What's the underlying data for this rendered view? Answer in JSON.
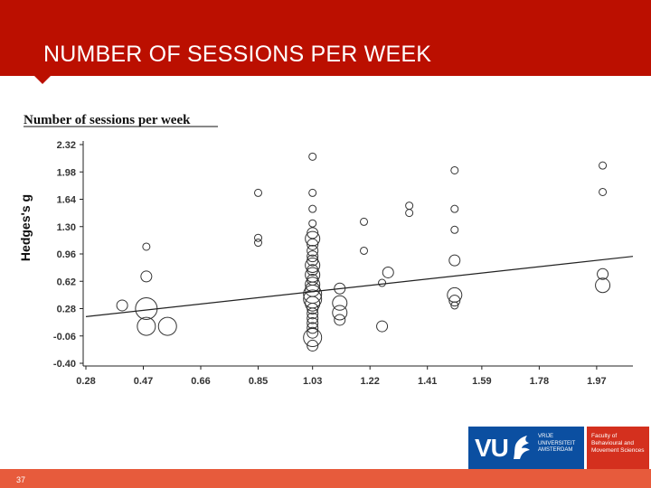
{
  "slide": {
    "title": "NUMBER OF SESSIONS PER WEEK",
    "slide_number": "37",
    "header_color": "#bb0f00",
    "footer_color": "#e75b3c"
  },
  "logo": {
    "mark": "VU",
    "university_lines": [
      "VRIJE",
      "UNIVERSITEIT",
      "AMSTERDAM"
    ],
    "faculty_lines": [
      "Faculty of",
      "Behavioural and",
      "Movement Sciences"
    ],
    "blue": "#0b4fa1",
    "red": "#d4301e",
    "icon": "griffin-icon"
  },
  "chart_data": {
    "type": "scatter",
    "title": "Number of sessions per week",
    "xlabel": "",
    "ylabel": "Hedges's g",
    "xlim": [
      0.28,
      2.09
    ],
    "ylim": [
      -0.4,
      2.32
    ],
    "x_ticks": [
      "0.28",
      "0.47",
      "0.66",
      "0.85",
      "1.03",
      "1.22",
      "1.41",
      "1.59",
      "1.78",
      "1.97"
    ],
    "y_ticks": [
      "2.32",
      "1.98",
      "1.64",
      "1.30",
      "0.96",
      "0.62",
      "0.28",
      "-0.06",
      "-0.40"
    ],
    "grid": false,
    "legend": "none",
    "marker": "open circle sized by weight",
    "regression_line": {
      "x": [
        0.28,
        2.09
      ],
      "y": [
        0.18,
        0.93
      ]
    },
    "points": [
      {
        "x": 1.03,
        "y": 2.17,
        "s": 1
      },
      {
        "x": 1.03,
        "y": 1.72,
        "s": 1
      },
      {
        "x": 1.03,
        "y": 1.52,
        "s": 1
      },
      {
        "x": 1.03,
        "y": 1.34,
        "s": 1
      },
      {
        "x": 1.03,
        "y": 1.22,
        "s": 2
      },
      {
        "x": 1.03,
        "y": 1.15,
        "s": 3
      },
      {
        "x": 1.03,
        "y": 1.08,
        "s": 2
      },
      {
        "x": 1.03,
        "y": 1.0,
        "s": 2
      },
      {
        "x": 1.03,
        "y": 0.93,
        "s": 2
      },
      {
        "x": 1.03,
        "y": 0.88,
        "s": 2
      },
      {
        "x": 1.03,
        "y": 0.82,
        "s": 3
      },
      {
        "x": 1.03,
        "y": 0.76,
        "s": 2
      },
      {
        "x": 1.03,
        "y": 0.7,
        "s": 3
      },
      {
        "x": 1.03,
        "y": 0.64,
        "s": 2
      },
      {
        "x": 1.03,
        "y": 0.58,
        "s": 3
      },
      {
        "x": 1.03,
        "y": 0.52,
        "s": 3
      },
      {
        "x": 1.03,
        "y": 0.46,
        "s": 4
      },
      {
        "x": 1.03,
        "y": 0.4,
        "s": 4
      },
      {
        "x": 1.03,
        "y": 0.34,
        "s": 3
      },
      {
        "x": 1.03,
        "y": 0.28,
        "s": 2
      },
      {
        "x": 1.03,
        "y": 0.22,
        "s": 2
      },
      {
        "x": 1.03,
        "y": 0.16,
        "s": 2
      },
      {
        "x": 1.03,
        "y": 0.1,
        "s": 2
      },
      {
        "x": 1.03,
        "y": 0.04,
        "s": 2
      },
      {
        "x": 1.03,
        "y": -0.02,
        "s": 2
      },
      {
        "x": 1.03,
        "y": -0.08,
        "s": 4
      },
      {
        "x": 1.03,
        "y": -0.18,
        "s": 2
      },
      {
        "x": 0.48,
        "y": 1.05,
        "s": 1
      },
      {
        "x": 0.48,
        "y": 0.68,
        "s": 2
      },
      {
        "x": 0.4,
        "y": 0.32,
        "s": 2
      },
      {
        "x": 0.48,
        "y": 0.28,
        "s": 5
      },
      {
        "x": 0.48,
        "y": 0.06,
        "s": 4
      },
      {
        "x": 0.55,
        "y": 0.06,
        "s": 4
      },
      {
        "x": 0.85,
        "y": 1.72,
        "s": 1
      },
      {
        "x": 0.85,
        "y": 1.16,
        "s": 1
      },
      {
        "x": 0.85,
        "y": 1.1,
        "s": 1
      },
      {
        "x": 1.12,
        "y": 0.53,
        "s": 2
      },
      {
        "x": 1.12,
        "y": 0.35,
        "s": 3
      },
      {
        "x": 1.12,
        "y": 0.23,
        "s": 3
      },
      {
        "x": 1.12,
        "y": 0.14,
        "s": 2
      },
      {
        "x": 1.2,
        "y": 1.36,
        "s": 1
      },
      {
        "x": 1.2,
        "y": 1.0,
        "s": 1
      },
      {
        "x": 1.26,
        "y": 0.6,
        "s": 1
      },
      {
        "x": 1.28,
        "y": 0.73,
        "s": 2
      },
      {
        "x": 1.26,
        "y": 0.06,
        "s": 2
      },
      {
        "x": 1.35,
        "y": 1.56,
        "s": 1
      },
      {
        "x": 1.35,
        "y": 1.47,
        "s": 1
      },
      {
        "x": 1.5,
        "y": 2.0,
        "s": 1
      },
      {
        "x": 1.5,
        "y": 1.52,
        "s": 1
      },
      {
        "x": 1.5,
        "y": 1.26,
        "s": 1
      },
      {
        "x": 1.5,
        "y": 0.88,
        "s": 2
      },
      {
        "x": 1.5,
        "y": 0.45,
        "s": 3
      },
      {
        "x": 1.5,
        "y": 0.38,
        "s": 2
      },
      {
        "x": 1.5,
        "y": 0.32,
        "s": 1
      },
      {
        "x": 1.99,
        "y": 2.06,
        "s": 1
      },
      {
        "x": 1.99,
        "y": 1.73,
        "s": 1
      },
      {
        "x": 1.99,
        "y": 0.71,
        "s": 2
      },
      {
        "x": 1.99,
        "y": 0.57,
        "s": 3
      }
    ]
  }
}
